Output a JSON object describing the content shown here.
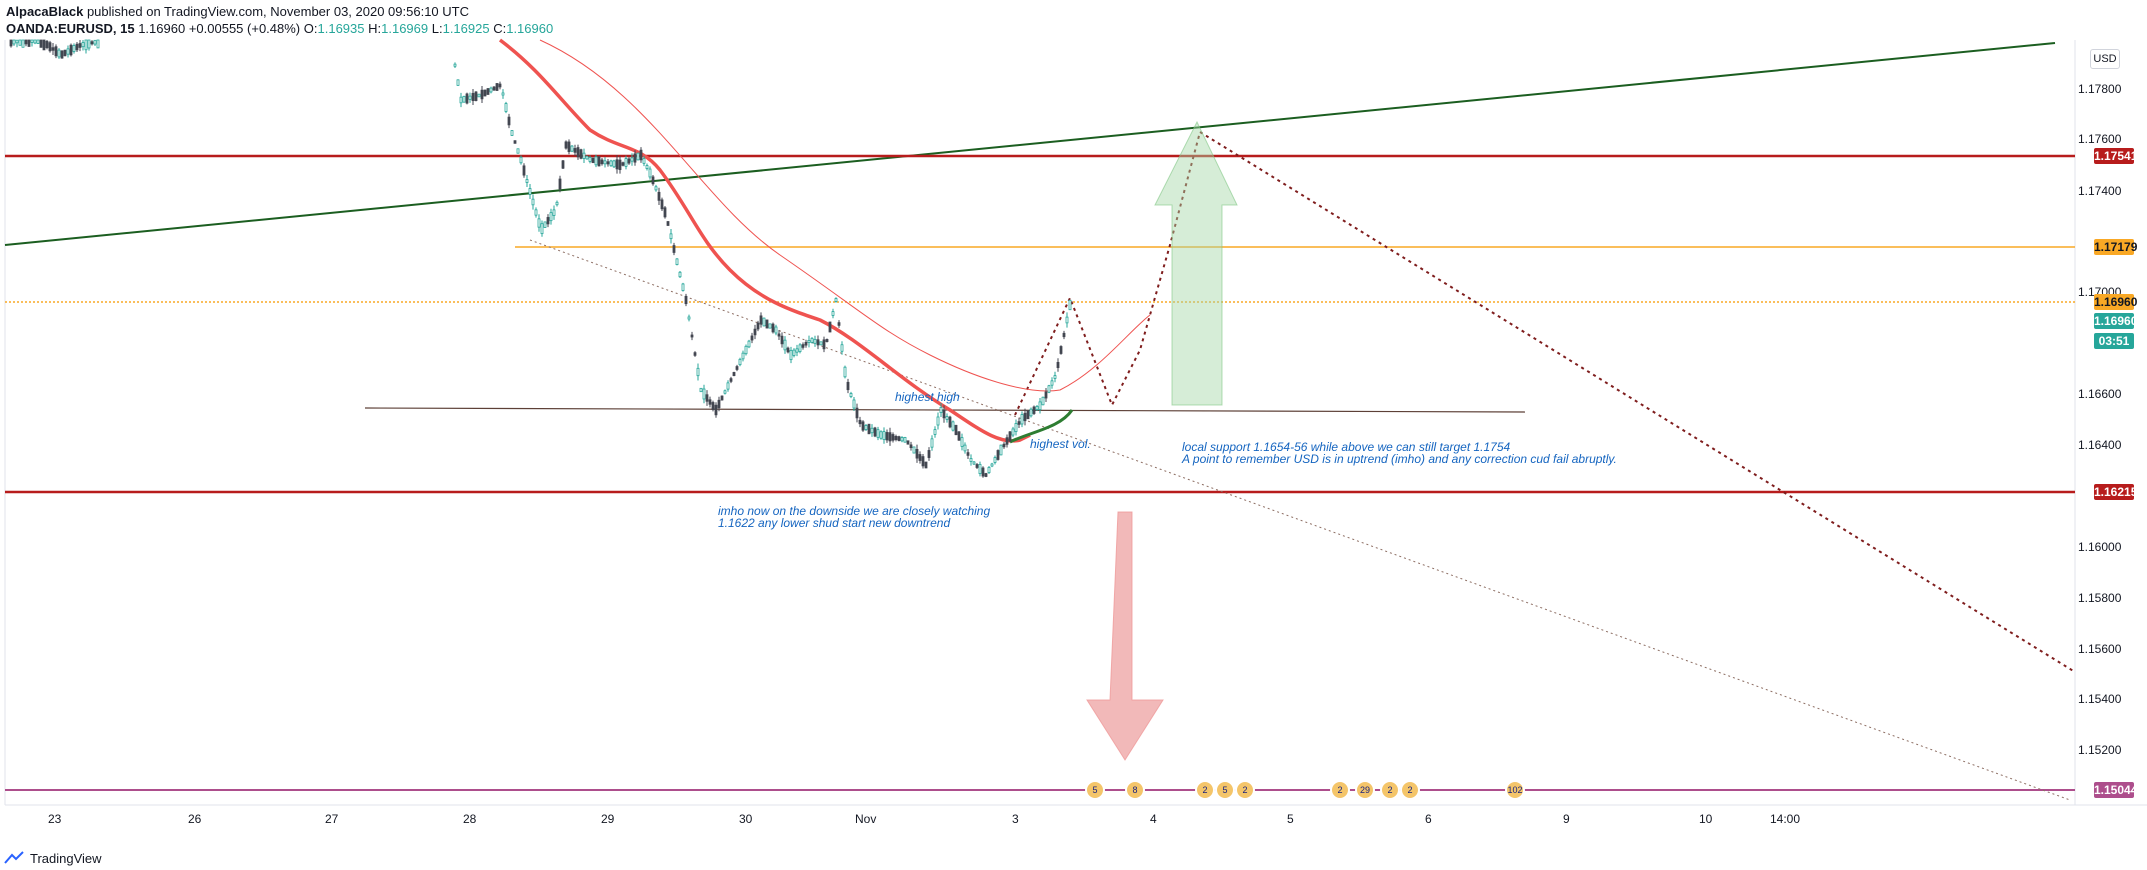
{
  "header": {
    "author": "AlpacaBlack",
    "published": " published on TradingView.com, November 03, 2020 09:56:10 UTC",
    "symbol": "OANDA:EURUSD, 15",
    "last": "1.16960",
    "change": "+0.00555 (+0.48%)",
    "open_label": "O:",
    "open": "1.16935",
    "high_label": "H:",
    "high": "1.16969",
    "low_label": "L:",
    "low": "1.16925",
    "close_label": "C:",
    "close": "1.16960"
  },
  "currency_button": "USD",
  "price_axis": {
    "ticks": [
      "1.17800",
      "1.17600",
      "1.17400",
      "1.17000",
      "1.16600",
      "1.16400",
      "1.16000",
      "1.15800",
      "1.15600",
      "1.15400",
      "1.15200"
    ],
    "labels": [
      {
        "text": "1.17541",
        "color": "#b71c1c"
      },
      {
        "text": "1.17179",
        "color": "#f9a825"
      },
      {
        "text": "1.16960",
        "color": "#f9a825"
      },
      {
        "text": "1.16960",
        "color": "#26a69a"
      },
      {
        "text": "03:51",
        "color": "#26a69a"
      },
      {
        "text": "1.16215",
        "color": "#b71c1c"
      },
      {
        "text": "1.15044",
        "color": "#ad4e8c"
      }
    ]
  },
  "time_axis": [
    "23",
    "26",
    "27",
    "28",
    "29",
    "30",
    "Nov",
    "3",
    "4",
    "5",
    "6",
    "9",
    "10",
    "14:00"
  ],
  "annotations": {
    "highest_high": "highest high",
    "highest_vol": "highest vol.",
    "local_support": "local support 1.1654-56 while above we can still target 1.1754\nA point to remember USD is in uptrend (imho) and any correction cud fail abruptly.",
    "downside": "imho now on the downside we are closely watching\n1.1622 any lower shud start new downtrend"
  },
  "events": [
    "5",
    "8",
    "2",
    "5",
    "2",
    "2",
    "29",
    "2",
    "2",
    "102"
  ],
  "footer": {
    "brand": "TradingView"
  },
  "colors": {
    "resistance": "#b71c1c",
    "support_yellow": "#f9a825",
    "trendline": "#1b5e20",
    "ma_fast": "#ef5350",
    "bull": "#26a69a",
    "bear": "#434651",
    "bottom_line": "#ad4e8c"
  }
}
